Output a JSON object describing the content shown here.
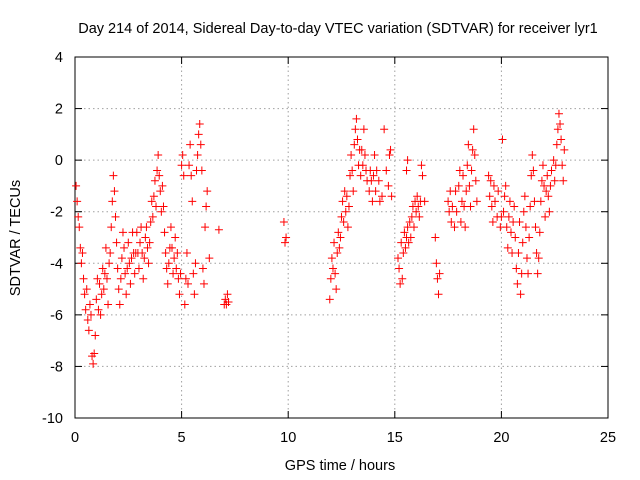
{
  "chart_data": {
    "type": "scatter",
    "title": "Day 214 of 2014, Sidereal Day-to-day VTEC variation (SDTVAR) for receiver lyr1",
    "xlabel": "GPS time / hours",
    "ylabel": "SDTVAR / TECUs",
    "xlim": [
      0,
      25
    ],
    "ylim": [
      -10,
      4
    ],
    "xticks": [
      0,
      5,
      10,
      15,
      20,
      25
    ],
    "yticks": [
      -10,
      -8,
      -6,
      -4,
      -2,
      0,
      2,
      4
    ],
    "xtick_labels": [
      "0",
      "5",
      "10",
      "15",
      "20",
      "25"
    ],
    "ytick_labels": [
      "-10",
      "-8",
      "-6",
      "-4",
      "-2",
      "0",
      "2",
      "4"
    ],
    "grid": true,
    "marker": "+",
    "color": "#ff0000",
    "series": [
      {
        "name": "lyr1",
        "points": [
          [
            0.05,
            -1.0
          ],
          [
            0.1,
            -1.6
          ],
          [
            0.15,
            -2.2
          ],
          [
            0.2,
            -2.6
          ],
          [
            0.25,
            -3.4
          ],
          [
            0.3,
            -4.0
          ],
          [
            0.35,
            -3.6
          ],
          [
            0.4,
            -4.6
          ],
          [
            0.45,
            -5.2
          ],
          [
            0.5,
            -5.8
          ],
          [
            0.55,
            -5.0
          ],
          [
            0.6,
            -6.2
          ],
          [
            0.65,
            -6.6
          ],
          [
            0.7,
            -5.6
          ],
          [
            0.75,
            -6.0
          ],
          [
            0.8,
            -7.6
          ],
          [
            0.85,
            -7.9
          ],
          [
            0.9,
            -7.5
          ],
          [
            0.95,
            -6.8
          ],
          [
            1.0,
            -5.4
          ],
          [
            1.05,
            -4.6
          ],
          [
            1.1,
            -5.8
          ],
          [
            1.15,
            -4.8
          ],
          [
            1.2,
            -6.0
          ],
          [
            1.25,
            -5.2
          ],
          [
            1.3,
            -4.2
          ],
          [
            1.35,
            -5.0
          ],
          [
            1.4,
            -4.4
          ],
          [
            1.45,
            -3.4
          ],
          [
            1.5,
            -4.6
          ],
          [
            1.55,
            -5.6
          ],
          [
            1.6,
            -4.0
          ],
          [
            1.65,
            -3.6
          ],
          [
            1.7,
            -2.6
          ],
          [
            1.75,
            -1.6
          ],
          [
            1.8,
            -0.6
          ],
          [
            1.85,
            -1.2
          ],
          [
            1.9,
            -2.2
          ],
          [
            1.95,
            -3.2
          ],
          [
            2.0,
            -4.2
          ],
          [
            2.05,
            -5.0
          ],
          [
            2.1,
            -5.6
          ],
          [
            2.15,
            -4.6
          ],
          [
            2.2,
            -3.8
          ],
          [
            2.25,
            -2.8
          ],
          [
            2.3,
            -3.4
          ],
          [
            2.35,
            -4.4
          ],
          [
            2.4,
            -5.2
          ],
          [
            2.45,
            -4.2
          ],
          [
            2.5,
            -3.2
          ],
          [
            2.55,
            -4.0
          ],
          [
            2.6,
            -4.8
          ],
          [
            2.65,
            -3.8
          ],
          [
            2.7,
            -2.8
          ],
          [
            2.75,
            -3.6
          ],
          [
            2.8,
            -4.4
          ],
          [
            2.85,
            -3.6
          ],
          [
            2.9,
            -2.8
          ],
          [
            2.95,
            -3.6
          ],
          [
            3.0,
            -4.2
          ],
          [
            3.05,
            -3.2
          ],
          [
            3.1,
            -2.6
          ],
          [
            3.15,
            -3.6
          ],
          [
            3.2,
            -4.6
          ],
          [
            3.25,
            -3.8
          ],
          [
            3.3,
            -3.0
          ],
          [
            3.35,
            -2.6
          ],
          [
            3.4,
            -3.4
          ],
          [
            3.45,
            -4.0
          ],
          [
            3.5,
            -3.2
          ],
          [
            3.55,
            -2.4
          ],
          [
            3.6,
            -1.6
          ],
          [
            3.65,
            -2.2
          ],
          [
            3.7,
            -1.4
          ],
          [
            3.75,
            -0.8
          ],
          [
            3.8,
            -1.8
          ],
          [
            3.85,
            -0.4
          ],
          [
            3.9,
            0.2
          ],
          [
            3.95,
            -0.6
          ],
          [
            4.0,
            -1.2
          ],
          [
            4.05,
            -2.0
          ],
          [
            4.1,
            -1.0
          ],
          [
            4.15,
            -1.8
          ],
          [
            4.2,
            -2.8
          ],
          [
            4.25,
            -3.6
          ],
          [
            4.3,
            -4.2
          ],
          [
            4.35,
            -4.8
          ],
          [
            4.4,
            -4.0
          ],
          [
            4.45,
            -3.4
          ],
          [
            4.5,
            -2.6
          ],
          [
            4.55,
            -3.4
          ],
          [
            4.6,
            -4.4
          ],
          [
            4.65,
            -3.8
          ],
          [
            4.7,
            -3.0
          ],
          [
            4.75,
            -4.2
          ],
          [
            4.8,
            -3.6
          ],
          [
            4.85,
            -4.6
          ],
          [
            4.9,
            -5.2
          ],
          [
            4.95,
            -4.4
          ],
          [
            5.0,
            -0.2
          ],
          [
            5.05,
            0.2
          ],
          [
            5.1,
            -0.6
          ],
          [
            5.15,
            -5.6
          ],
          [
            5.2,
            -4.6
          ],
          [
            5.25,
            -3.6
          ],
          [
            5.3,
            -4.8
          ],
          [
            5.35,
            -0.2
          ],
          [
            5.4,
            0.6
          ],
          [
            5.45,
            -0.6
          ],
          [
            5.5,
            -1.6
          ],
          [
            5.55,
            -4.4
          ],
          [
            5.6,
            -5.2
          ],
          [
            5.65,
            -4.0
          ],
          [
            5.7,
            -0.4
          ],
          [
            5.75,
            0.2
          ],
          [
            5.8,
            1.0
          ],
          [
            5.85,
            1.4
          ],
          [
            5.9,
            0.6
          ],
          [
            5.95,
            -0.4
          ],
          [
            6.0,
            -4.2
          ],
          [
            6.05,
            -4.8
          ],
          [
            6.1,
            -2.6
          ],
          [
            6.15,
            -1.8
          ],
          [
            6.2,
            -1.2
          ],
          [
            6.3,
            -3.8
          ],
          [
            6.75,
            -2.7
          ],
          [
            7.0,
            -5.6
          ],
          [
            7.05,
            -5.4
          ],
          [
            7.1,
            -5.6
          ],
          [
            7.15,
            -5.2
          ],
          [
            7.2,
            -5.5
          ],
          [
            9.8,
            -2.4
          ],
          [
            9.85,
            -3.2
          ],
          [
            9.9,
            -3.0
          ],
          [
            11.95,
            -5.4
          ],
          [
            12.0,
            -4.6
          ],
          [
            12.05,
            -3.8
          ],
          [
            12.1,
            -4.2
          ],
          [
            12.15,
            -3.2
          ],
          [
            12.2,
            -4.4
          ],
          [
            12.25,
            -5.0
          ],
          [
            12.3,
            -3.6
          ],
          [
            12.35,
            -2.8
          ],
          [
            12.4,
            -3.4
          ],
          [
            12.45,
            -3.0
          ],
          [
            12.5,
            -2.2
          ],
          [
            12.55,
            -1.6
          ],
          [
            12.6,
            -2.4
          ],
          [
            12.65,
            -1.2
          ],
          [
            12.7,
            -2.0
          ],
          [
            12.75,
            -1.4
          ],
          [
            12.8,
            -2.6
          ],
          [
            12.85,
            -1.8
          ],
          [
            12.9,
            -0.6
          ],
          [
            12.95,
            0.2
          ],
          [
            13.0,
            -0.4
          ],
          [
            13.05,
            -1.2
          ],
          [
            13.1,
            0.6
          ],
          [
            13.15,
            1.2
          ],
          [
            13.2,
            1.6
          ],
          [
            13.25,
            0.8
          ],
          [
            13.3,
            -0.2
          ],
          [
            13.35,
            0.4
          ],
          [
            13.4,
            -0.6
          ],
          [
            13.45,
            0.4
          ],
          [
            13.5,
            -0.2
          ],
          [
            13.55,
            1.2
          ],
          [
            13.6,
            0.2
          ],
          [
            13.65,
            -0.4
          ],
          [
            13.7,
            -0.8
          ],
          [
            13.8,
            -1.2
          ],
          [
            13.85,
            -0.4
          ],
          [
            13.9,
            -0.8
          ],
          [
            13.95,
            -1.6
          ],
          [
            14.0,
            -0.6
          ],
          [
            14.05,
            0.2
          ],
          [
            14.1,
            -1.2
          ],
          [
            14.15,
            -0.4
          ],
          [
            14.25,
            -0.8
          ],
          [
            14.3,
            -1.6
          ],
          [
            14.4,
            -1.4
          ],
          [
            14.5,
            1.2
          ],
          [
            14.6,
            -0.4
          ],
          [
            14.7,
            -1.0
          ],
          [
            14.75,
            0.2
          ],
          [
            14.8,
            0.4
          ],
          [
            14.85,
            -1.4
          ],
          [
            15.15,
            -3.8
          ],
          [
            15.2,
            -4.2
          ],
          [
            15.25,
            -4.8
          ],
          [
            15.3,
            -3.2
          ],
          [
            15.35,
            -4.6
          ],
          [
            15.4,
            -3.6
          ],
          [
            15.45,
            -2.8
          ],
          [
            15.5,
            -3.4
          ],
          [
            15.55,
            -3.0
          ],
          [
            15.6,
            -2.6
          ],
          [
            15.65,
            -3.2
          ],
          [
            15.7,
            -2.4
          ],
          [
            15.75,
            -3.0
          ],
          [
            15.8,
            -2.2
          ],
          [
            15.85,
            -1.8
          ],
          [
            15.9,
            -2.6
          ],
          [
            15.95,
            -1.6
          ],
          [
            16.0,
            -2.0
          ],
          [
            16.05,
            -1.4
          ],
          [
            16.1,
            -1.8
          ],
          [
            16.15,
            -2.2
          ],
          [
            16.2,
            -1.6
          ],
          [
            16.25,
            -0.2
          ],
          [
            16.3,
            -0.6
          ],
          [
            16.4,
            -1.6
          ],
          [
            15.55,
            -0.4
          ],
          [
            15.6,
            0.0
          ],
          [
            16.9,
            -3.0
          ],
          [
            16.95,
            -4.0
          ],
          [
            17.0,
            -4.6
          ],
          [
            17.05,
            -5.2
          ],
          [
            17.1,
            -4.4
          ],
          [
            17.5,
            -1.6
          ],
          [
            17.55,
            -2.0
          ],
          [
            17.6,
            -1.2
          ],
          [
            17.65,
            -2.4
          ],
          [
            17.7,
            -1.8
          ],
          [
            17.8,
            -2.6
          ],
          [
            17.85,
            -1.2
          ],
          [
            17.9,
            -2.0
          ],
          [
            18.0,
            -1.0
          ],
          [
            18.05,
            -0.4
          ],
          [
            18.1,
            -2.4
          ],
          [
            18.15,
            -1.6
          ],
          [
            18.2,
            -0.6
          ],
          [
            18.25,
            -1.8
          ],
          [
            18.3,
            -2.6
          ],
          [
            18.35,
            -1.2
          ],
          [
            18.4,
            -0.2
          ],
          [
            18.45,
            0.6
          ],
          [
            18.5,
            -1.0
          ],
          [
            18.55,
            -1.8
          ],
          [
            18.6,
            -0.4
          ],
          [
            18.65,
            0.4
          ],
          [
            18.7,
            1.2
          ],
          [
            18.75,
            0.2
          ],
          [
            18.8,
            -0.8
          ],
          [
            18.85,
            -1.6
          ],
          [
            19.4,
            -0.6
          ],
          [
            19.45,
            -1.4
          ],
          [
            19.5,
            -0.8
          ],
          [
            19.55,
            -1.8
          ],
          [
            19.6,
            -2.4
          ],
          [
            19.65,
            -1.0
          ],
          [
            19.7,
            -1.6
          ],
          [
            19.8,
            -2.2
          ],
          [
            19.85,
            -1.2
          ],
          [
            19.95,
            -2.6
          ],
          [
            20.0,
            -2.2
          ],
          [
            20.05,
            0.8
          ],
          [
            20.1,
            -2.0
          ],
          [
            20.15,
            -1.4
          ],
          [
            20.2,
            -1.0
          ],
          [
            20.25,
            -2.6
          ],
          [
            20.3,
            -3.4
          ],
          [
            20.35,
            -2.2
          ],
          [
            20.4,
            -1.6
          ],
          [
            20.45,
            -2.8
          ],
          [
            20.5,
            -3.6
          ],
          [
            20.55,
            -2.4
          ],
          [
            20.6,
            -1.8
          ],
          [
            20.65,
            -3.0
          ],
          [
            20.7,
            -4.2
          ],
          [
            20.75,
            -4.8
          ],
          [
            20.8,
            -3.6
          ],
          [
            20.85,
            -2.4
          ],
          [
            20.9,
            -5.2
          ],
          [
            20.95,
            -4.4
          ],
          [
            21.0,
            -3.2
          ],
          [
            21.05,
            -2.0
          ],
          [
            21.1,
            -1.4
          ],
          [
            21.15,
            -2.6
          ],
          [
            21.2,
            -3.8
          ],
          [
            21.25,
            -4.4
          ],
          [
            21.3,
            -3.0
          ],
          [
            21.35,
            -1.8
          ],
          [
            21.4,
            -0.6
          ],
          [
            21.45,
            0.2
          ],
          [
            21.5,
            -0.4
          ],
          [
            21.55,
            -1.6
          ],
          [
            21.6,
            -2.6
          ],
          [
            21.65,
            -3.6
          ],
          [
            21.7,
            -4.4
          ],
          [
            21.75,
            -3.8
          ],
          [
            21.8,
            -2.8
          ],
          [
            21.85,
            -1.6
          ],
          [
            21.9,
            -0.8
          ],
          [
            21.95,
            -0.2
          ],
          [
            22.0,
            -1.0
          ],
          [
            22.05,
            -2.2
          ],
          [
            22.1,
            -1.2
          ],
          [
            22.15,
            -0.6
          ],
          [
            22.2,
            -1.4
          ],
          [
            22.25,
            -2.0
          ],
          [
            22.3,
            -1.0
          ],
          [
            22.35,
            -0.4
          ],
          [
            22.45,
            0.0
          ],
          [
            22.5,
            -0.8
          ],
          [
            22.55,
            -0.2
          ],
          [
            22.6,
            0.6
          ],
          [
            22.65,
            1.2
          ],
          [
            22.7,
            1.8
          ],
          [
            22.75,
            1.4
          ],
          [
            22.8,
            0.8
          ],
          [
            22.85,
            -0.2
          ],
          [
            22.9,
            -0.8
          ],
          [
            22.95,
            0.4
          ]
        ]
      }
    ]
  }
}
